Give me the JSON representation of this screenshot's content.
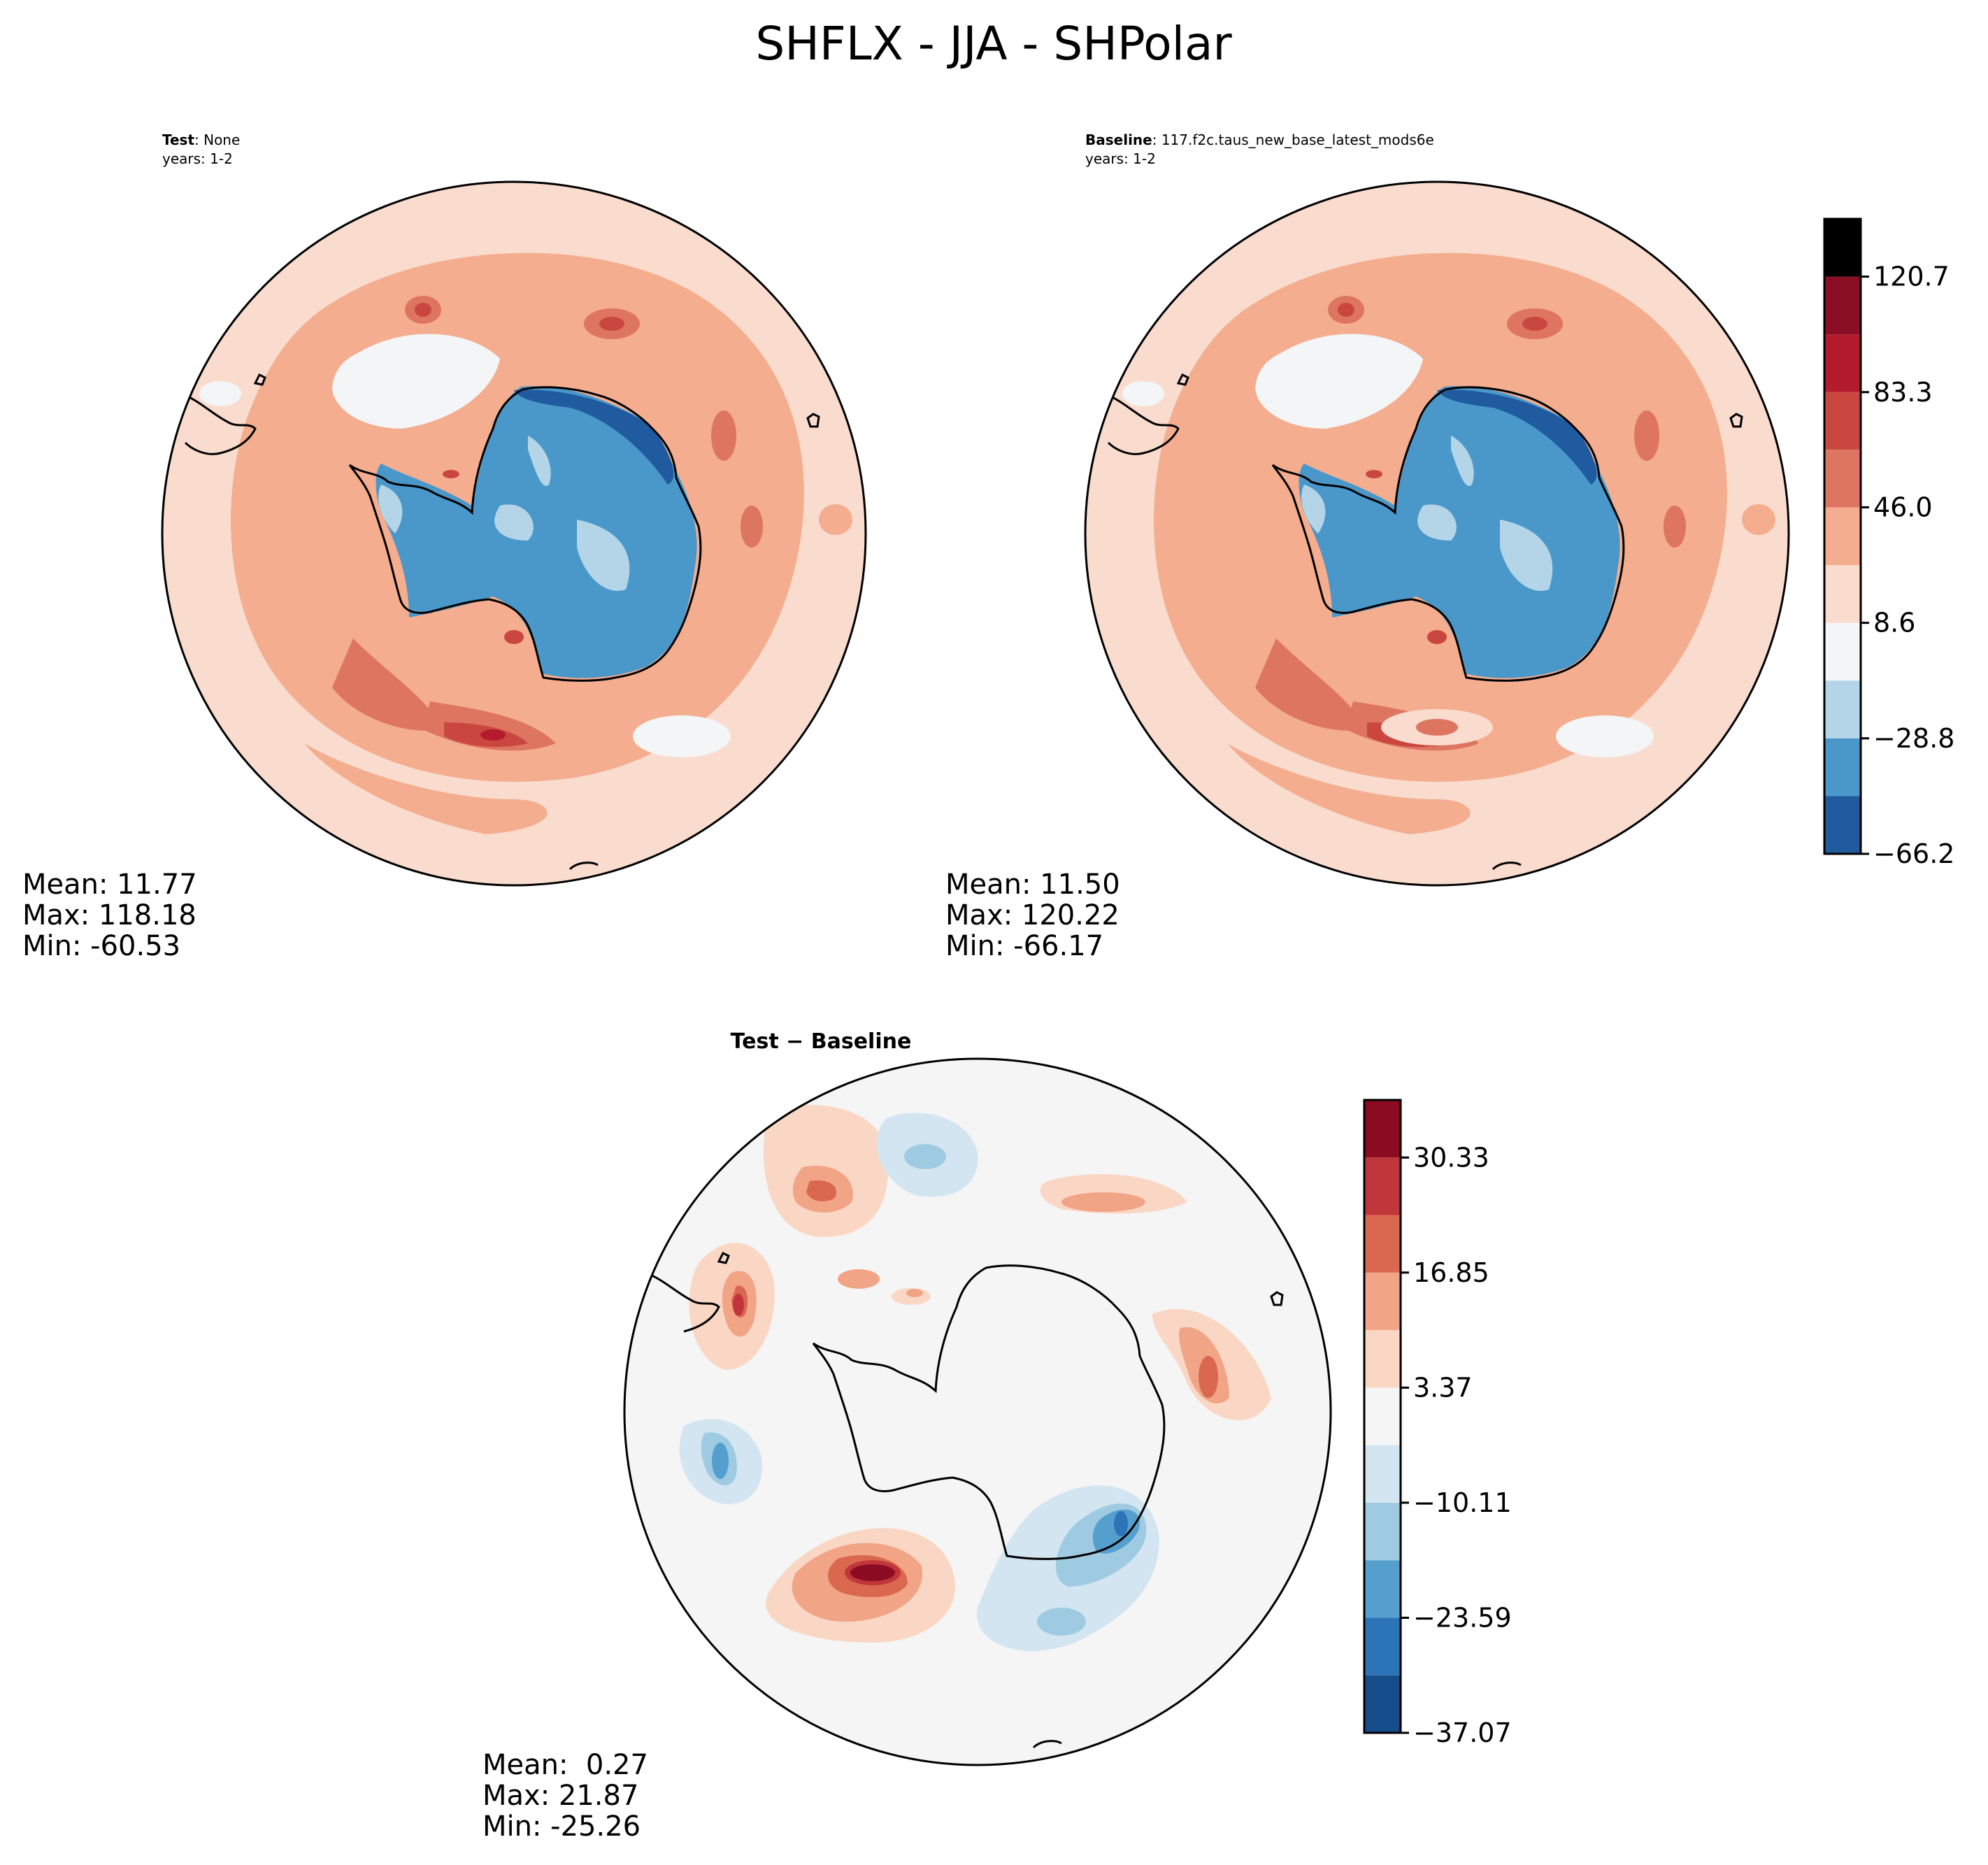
{
  "figure": {
    "title": "SHFLX - JJA - SHPolar"
  },
  "panels": {
    "test": {
      "label": "Test",
      "label_value": ": None",
      "years": "years: 1-2",
      "stats": {
        "mean": "Mean: 11.77",
        "max": "Max: 118.18",
        "min": "Min: -60.53"
      }
    },
    "baseline": {
      "label": "Baseline",
      "label_value": ": 117.f2c.taus_new_base_latest_mods6e",
      "years": "years: 1-2",
      "stats": {
        "mean": "Mean: 11.50",
        "max": "Max: 120.22",
        "min": "Min: -66.17"
      }
    },
    "diff": {
      "label": "Test − Baseline",
      "stats": {
        "mean": "Mean:  0.27",
        "max": "Max: 21.87",
        "min": "Min: -25.26"
      }
    }
  },
  "colors": {
    "abs_levels": [
      "#1f5b9e",
      "#4a97c9",
      "#b3d5e7",
      "#f4f5f7",
      "#f9dcce",
      "#f4ad8e",
      "#dd7561",
      "#c9473f",
      "#b41c2d",
      "#8a0f24"
    ],
    "diff_levels": [
      "#154c8a",
      "#2c74b8",
      "#559fcf",
      "#9fcbe2",
      "#d3e5f1",
      "#f5f5f5",
      "#fad7c4",
      "#f1a486",
      "#d9684f",
      "#c0363a",
      "#8b0c22"
    ],
    "coast": "#000000",
    "antarctica_blue": "#4a97c9",
    "antarctica_light": "#b3d5e7",
    "antarctica_dark": "#1f5b9e"
  },
  "chart_data": [
    {
      "type": "heatmap",
      "title": "Test",
      "subtitle": "None",
      "variable": "SHFLX",
      "season": "JJA",
      "region": "SHPolar",
      "projection": "south polar stereographic",
      "mean": 11.77,
      "max": 118.18,
      "min": -60.53
    },
    {
      "type": "heatmap",
      "title": "Baseline",
      "subtitle": "117.f2c.taus_new_base_latest_mods6e",
      "mean": 11.5,
      "max": 120.22,
      "min": -66.17,
      "colorbar": {
        "levels": [
          -66.2,
          -47.5,
          -28.8,
          -10.1,
          8.6,
          27.3,
          46.0,
          64.7,
          83.3,
          102.0,
          120.7,
          139.4
        ],
        "tick_labels": [
          "−66.2",
          "−28.8",
          "8.6",
          "46.0",
          "83.3",
          "120.7"
        ]
      }
    },
    {
      "type": "heatmap",
      "title": "Test − Baseline",
      "mean": 0.27,
      "max": 21.87,
      "min": -25.26,
      "colorbar": {
        "levels": [
          -37.07,
          -30.33,
          -23.59,
          -16.85,
          -10.11,
          -3.37,
          3.37,
          10.11,
          16.85,
          23.59,
          30.33,
          37.07
        ],
        "tick_labels": [
          "−37.07",
          "−23.59",
          "−10.11",
          "3.37",
          "16.85",
          "30.33"
        ]
      }
    }
  ]
}
